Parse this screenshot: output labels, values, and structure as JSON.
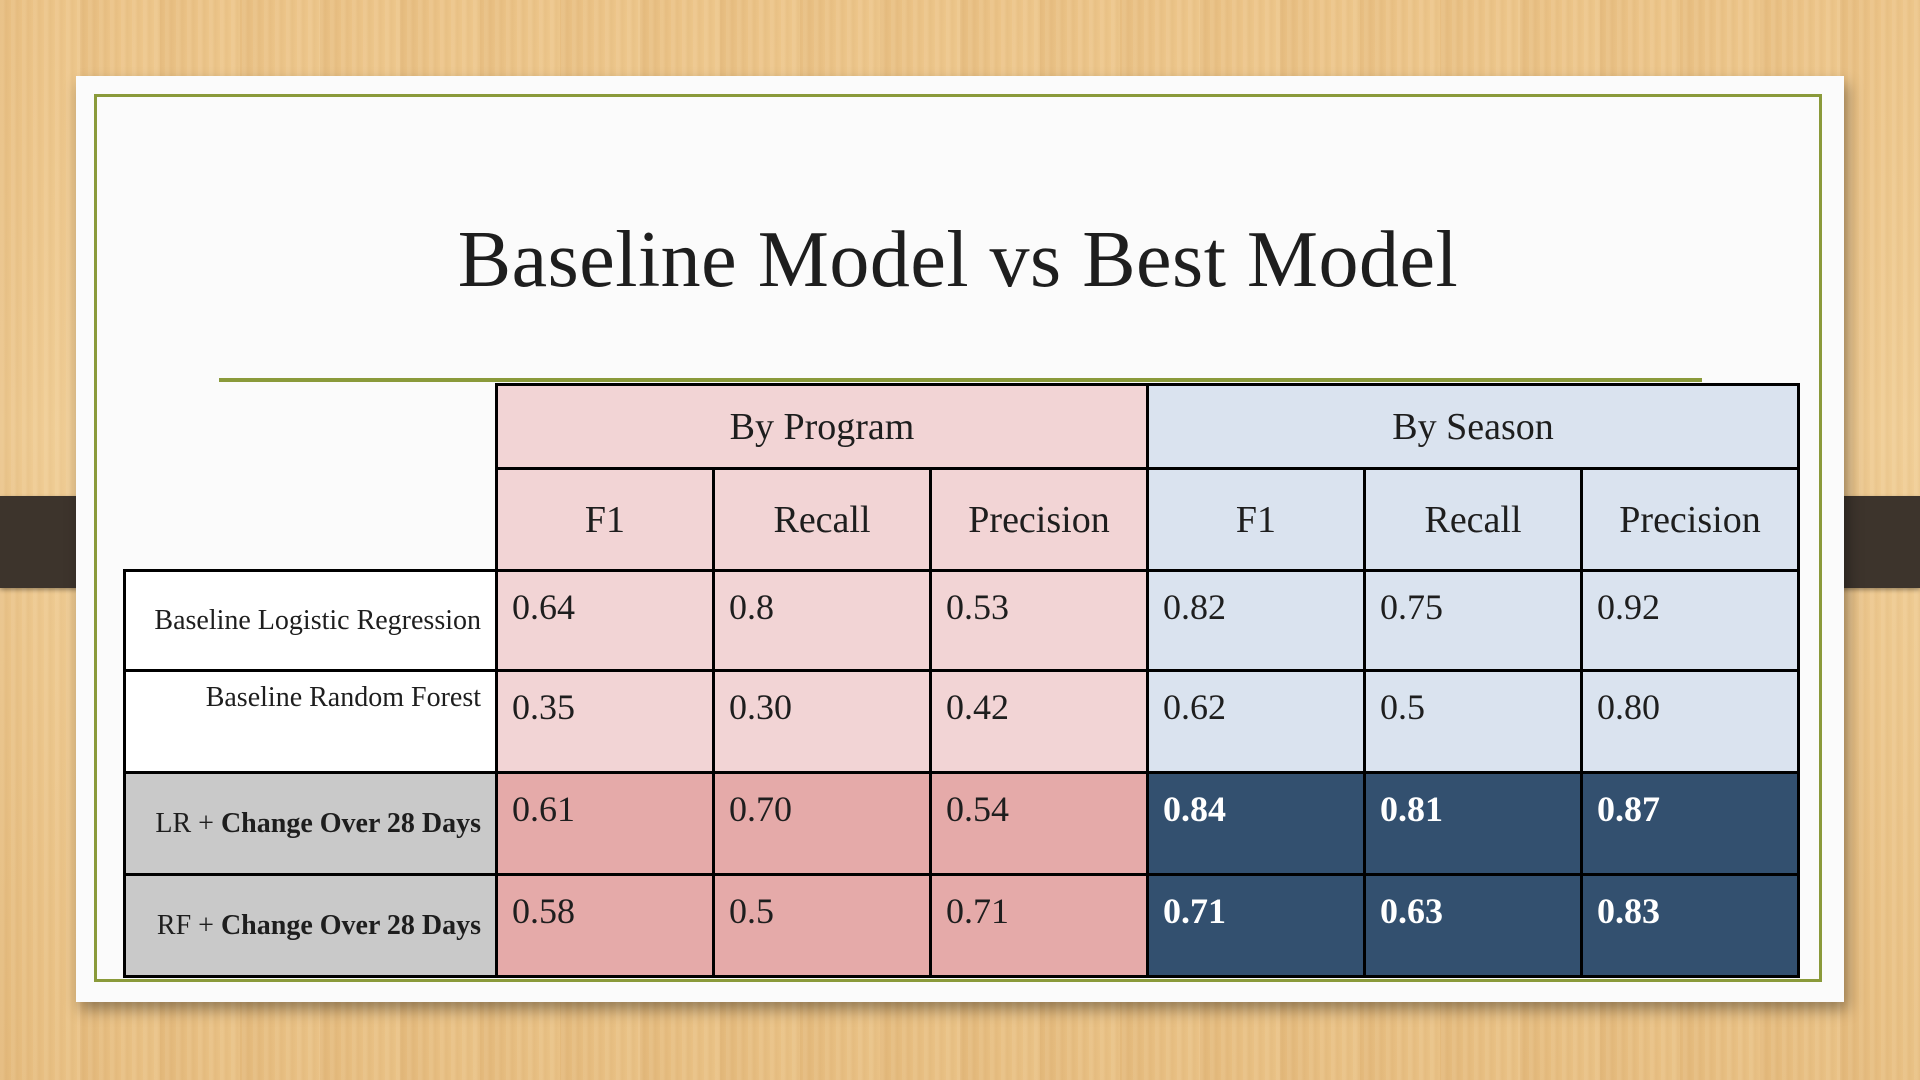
{
  "slide": {
    "title": "Baseline Model vs Best Model"
  },
  "table": {
    "groups": [
      "By Program",
      "By Season"
    ],
    "columns": [
      "F1",
      "Recall",
      "Precision",
      "F1",
      "Recall",
      "Precision"
    ],
    "rows": [
      {
        "label_plain": "Baseline Logistic Regression",
        "label_bold": "",
        "values": [
          "0.64",
          "0.8",
          "0.53",
          "0.82",
          "0.75",
          "0.92"
        ]
      },
      {
        "label_plain": "Baseline Random Forest",
        "label_bold": "",
        "values": [
          "0.35",
          "0.30",
          "0.42",
          "0.62",
          "0.5",
          "0.80"
        ]
      },
      {
        "label_plain": "LR + ",
        "label_bold": "Change Over 28 Days",
        "values": [
          "0.61",
          "0.70",
          "0.54",
          "0.84",
          "0.81",
          "0.87"
        ]
      },
      {
        "label_plain": "RF + ",
        "label_bold": "Change Over 28 Days",
        "values": [
          "0.58",
          "0.5",
          "0.71",
          "0.71",
          "0.63",
          "0.83"
        ]
      }
    ]
  },
  "colors": {
    "frame": "#8a9a3a",
    "program_light": "#f2d4d5",
    "program_best": "#e5aaa9",
    "season_light": "#dae3ef",
    "season_best": "#33506f",
    "best_label_bg": "#c9c9c9"
  }
}
